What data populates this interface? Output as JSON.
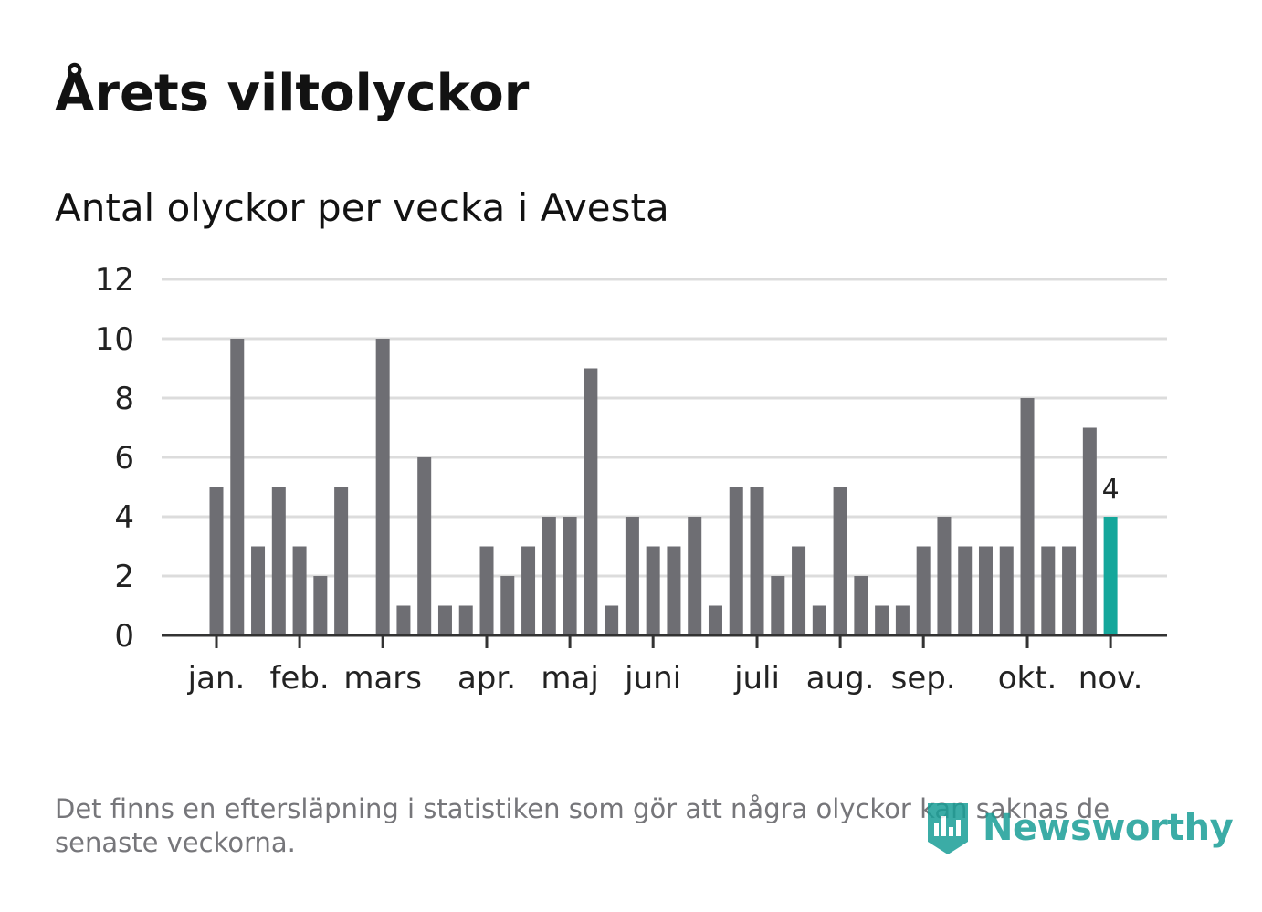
{
  "header": {
    "title": "Årets viltolyckor",
    "subtitle": "Antal olyckor per vecka i Avesta"
  },
  "chart_data": {
    "type": "bar",
    "title": "Antal olyckor per vecka i Avesta",
    "xlabel": "",
    "ylabel": "",
    "ylim": [
      0,
      12
    ],
    "yticks": [
      "0",
      "2",
      "4",
      "6",
      "8",
      "10",
      "12"
    ],
    "grid": true,
    "months": [
      {
        "label": "jan.",
        "week": 1
      },
      {
        "label": "feb.",
        "week": 5
      },
      {
        "label": "mars",
        "week": 9
      },
      {
        "label": "apr.",
        "week": 14
      },
      {
        "label": "maj",
        "week": 18
      },
      {
        "label": "juni",
        "week": 22
      },
      {
        "label": "juli",
        "week": 27
      },
      {
        "label": "aug.",
        "week": 31
      },
      {
        "label": "sep.",
        "week": 35
      },
      {
        "label": "okt.",
        "week": 40
      },
      {
        "label": "nov.",
        "week": 44
      }
    ],
    "values": [
      5,
      10,
      3,
      5,
      3,
      2,
      5,
      0,
      10,
      1,
      6,
      1,
      1,
      3,
      2,
      3,
      4,
      4,
      9,
      1,
      4,
      3,
      3,
      4,
      1,
      5,
      5,
      2,
      3,
      1,
      5,
      2,
      1,
      1,
      3,
      4,
      3,
      3,
      3,
      8,
      3,
      3,
      7,
      4
    ],
    "highlight_index": 43,
    "highlight_label": "4",
    "colors": {
      "bar": "#6e6e73",
      "highlight": "#14a79b",
      "grid": "#dcdcdc",
      "axis": "#333333",
      "label": "#222222"
    }
  },
  "footnote": "Det finns en eftersläpning i statistiken som gör att några olyckor kan saknas de senaste veckorna.",
  "brand": {
    "name": "Newsworthy",
    "icon": "newsworthy-logo-icon",
    "color": "#1a9e97"
  }
}
